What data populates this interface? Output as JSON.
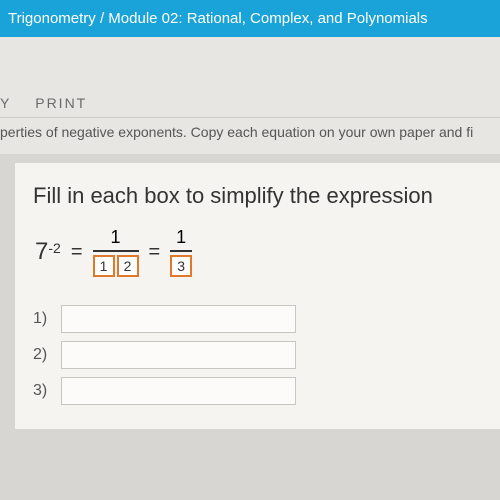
{
  "banner": {
    "title": "Trigonometry / Module 02: Rational, Complex, and Polynomials"
  },
  "toolbar": {
    "item_left_tail": "Y",
    "print": "PRINT"
  },
  "instruction": "perties of negative exponents. Copy each equation on your own paper and fi",
  "card": {
    "prompt": "Fill in each box to simplify the expression",
    "equation": {
      "base": "7",
      "exponent": "-2",
      "eq": "=",
      "frac1": {
        "num": "1",
        "den_blank1": "1",
        "den_blank2": "2"
      },
      "frac2": {
        "num": "1",
        "den_blank": "3"
      }
    },
    "answers": [
      {
        "label": "1)",
        "value": ""
      },
      {
        "label": "2)",
        "value": ""
      },
      {
        "label": "3)",
        "value": ""
      }
    ]
  },
  "colors": {
    "banner_bg": "#1aa3d9",
    "page_bg": "#d8d6d2",
    "card_bg": "#f5f4f1",
    "blank_border": "#e07a2a"
  }
}
